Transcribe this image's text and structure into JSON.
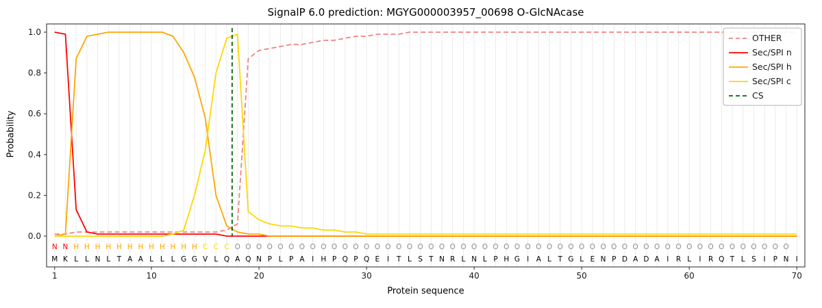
{
  "chart_data": {
    "type": "line",
    "title": "SignalP 6.0 prediction: MGYG000003957_00698 O-GlcNAcase",
    "xlabel": "Protein sequence",
    "ylabel": "Probability",
    "xlim": [
      0.25,
      70.75
    ],
    "ylim": [
      -0.15,
      1.04
    ],
    "x_ticks": [
      1,
      10,
      20,
      30,
      40,
      50,
      60,
      70
    ],
    "y_ticks": [
      0.0,
      0.2,
      0.4,
      0.6,
      0.8,
      1.0
    ],
    "grid": "vertical",
    "legend_position": "upper right",
    "x": [
      1,
      2,
      3,
      4,
      5,
      6,
      7,
      8,
      9,
      10,
      11,
      12,
      13,
      14,
      15,
      16,
      17,
      18,
      19,
      20,
      21,
      22,
      23,
      24,
      25,
      26,
      27,
      28,
      29,
      30,
      31,
      32,
      33,
      34,
      35,
      36,
      37,
      38,
      39,
      40,
      41,
      42,
      43,
      44,
      45,
      46,
      47,
      48,
      49,
      50,
      51,
      52,
      53,
      54,
      55,
      56,
      57,
      58,
      59,
      60,
      61,
      62,
      63,
      64,
      65,
      66,
      67,
      68,
      69,
      70
    ],
    "series": [
      {
        "name": "OTHER",
        "color": "#f08080",
        "dash": true,
        "values": [
          0.01,
          0.01,
          0.02,
          0.02,
          0.02,
          0.02,
          0.02,
          0.02,
          0.02,
          0.02,
          0.02,
          0.02,
          0.02,
          0.02,
          0.02,
          0.02,
          0.03,
          0.06,
          0.87,
          0.91,
          0.92,
          0.93,
          0.94,
          0.94,
          0.95,
          0.96,
          0.96,
          0.97,
          0.98,
          0.98,
          0.99,
          0.99,
          0.99,
          1.0,
          1.0,
          1.0,
          1.0,
          1.0,
          1.0,
          1.0,
          1.0,
          1.0,
          1.0,
          1.0,
          1.0,
          1.0,
          1.0,
          1.0,
          1.0,
          1.0,
          1.0,
          1.0,
          1.0,
          1.0,
          1.0,
          1.0,
          1.0,
          1.0,
          1.0,
          1.0,
          1.0,
          1.0,
          1.0,
          1.0,
          1.0,
          1.0,
          1.0,
          1.0,
          1.0,
          1.0
        ]
      },
      {
        "name": "Sec/SPI n",
        "color": "#ff0000",
        "dash": false,
        "values": [
          1.0,
          0.99,
          0.13,
          0.02,
          0.01,
          0.01,
          0.01,
          0.01,
          0.01,
          0.01,
          0.01,
          0.01,
          0.01,
          0.01,
          0.01,
          0.01,
          0.0,
          0.0,
          0.0,
          0.0,
          0.0,
          0.0,
          0.0,
          0.0,
          0.0,
          0.0,
          0.0,
          0.0,
          0.0,
          0.0,
          0.0,
          0.0,
          0.0,
          0.0,
          0.0,
          0.0,
          0.0,
          0.0,
          0.0,
          0.0,
          0.0,
          0.0,
          0.0,
          0.0,
          0.0,
          0.0,
          0.0,
          0.0,
          0.0,
          0.0,
          0.0,
          0.0,
          0.0,
          0.0,
          0.0,
          0.0,
          0.0,
          0.0,
          0.0,
          0.0,
          0.0,
          0.0,
          0.0,
          0.0,
          0.0,
          0.0,
          0.0,
          0.0,
          0.0,
          0.0
        ]
      },
      {
        "name": "Sec/SPI h",
        "color": "#ffa500",
        "dash": false,
        "values": [
          0.0,
          0.01,
          0.87,
          0.98,
          0.99,
          1.0,
          1.0,
          1.0,
          1.0,
          1.0,
          1.0,
          0.98,
          0.9,
          0.78,
          0.58,
          0.2,
          0.05,
          0.02,
          0.01,
          0.01,
          0.0,
          0.0,
          0.0,
          0.0,
          0.0,
          0.0,
          0.0,
          0.0,
          0.0,
          0.0,
          0.0,
          0.0,
          0.0,
          0.0,
          0.0,
          0.0,
          0.0,
          0.0,
          0.0,
          0.0,
          0.0,
          0.0,
          0.0,
          0.0,
          0.0,
          0.0,
          0.0,
          0.0,
          0.0,
          0.0,
          0.0,
          0.0,
          0.0,
          0.0,
          0.0,
          0.0,
          0.0,
          0.0,
          0.0,
          0.0,
          0.0,
          0.0,
          0.0,
          0.0,
          0.0,
          0.0,
          0.0,
          0.0,
          0.0,
          0.0
        ]
      },
      {
        "name": "Sec/SPI c",
        "color": "#ffd700",
        "dash": false,
        "values": [
          0.0,
          0.0,
          0.0,
          0.0,
          0.0,
          0.0,
          0.0,
          0.0,
          0.0,
          0.0,
          0.0,
          0.01,
          0.03,
          0.2,
          0.42,
          0.8,
          0.97,
          0.99,
          0.12,
          0.08,
          0.06,
          0.05,
          0.05,
          0.04,
          0.04,
          0.03,
          0.03,
          0.02,
          0.02,
          0.01,
          0.01,
          0.01,
          0.01,
          0.01,
          0.01,
          0.01,
          0.01,
          0.01,
          0.01,
          0.01,
          0.01,
          0.01,
          0.01,
          0.01,
          0.01,
          0.01,
          0.01,
          0.01,
          0.01,
          0.01,
          0.01,
          0.01,
          0.01,
          0.01,
          0.01,
          0.01,
          0.01,
          0.01,
          0.01,
          0.01,
          0.01,
          0.01,
          0.01,
          0.01,
          0.01,
          0.01,
          0.01,
          0.01,
          0.01,
          0.01
        ]
      }
    ],
    "cs_marker": {
      "label": "CS",
      "x": 17.5,
      "color": "#006400",
      "dash": true
    },
    "sequence": "MKLLNLTAALLLGGVLQAQNPLPAIHPQPQEITLSTNRLNLPHGIALTGLENPDADAIRLIRQTLSIPNI",
    "residue_labels": "NNHHHHHHHHHHHHCCCOOOOOOOOOOOOOOOOOOOOOOOOOOOOOOOOOOOOOOOOOOOOOOOOOOOO",
    "label_colors": {
      "N": "#ff0000",
      "H": "#ffa500",
      "C": "#ffd700",
      "O": "#8c8c8c"
    },
    "sequence_color": "#000000",
    "legend": [
      "OTHER",
      "Sec/SPI n",
      "Sec/SPI h",
      "Sec/SPI c",
      "CS"
    ]
  }
}
